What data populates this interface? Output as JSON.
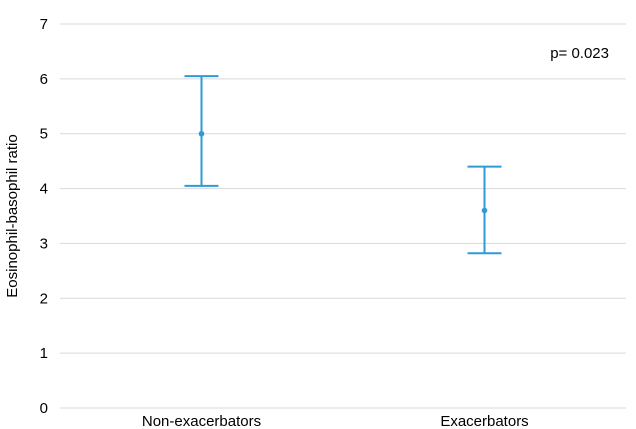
{
  "chart_data": {
    "type": "scatter",
    "title": "",
    "xlabel": "",
    "ylabel": "Eosinophil-basophil ratio",
    "ylim": [
      0,
      7
    ],
    "yticks": [
      0,
      1,
      2,
      3,
      4,
      5,
      6,
      7
    ],
    "categories": [
      "Non-exacerbators",
      "Exacerbators"
    ],
    "points": [
      {
        "category": "Non-exacerbators",
        "value": 5.0,
        "lower": 4.05,
        "upper": 6.05
      },
      {
        "category": "Exacerbators",
        "value": 3.6,
        "lower": 2.82,
        "upper": 4.4
      }
    ],
    "annotations": [
      "p= 0.023"
    ],
    "grid": true,
    "colors": {
      "series": "#2E9BD6",
      "grid": "#d9d9d9",
      "axis": "#d9d9d9"
    }
  }
}
